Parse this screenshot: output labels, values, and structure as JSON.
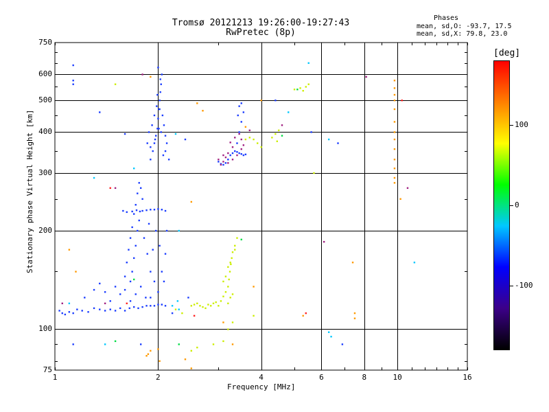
{
  "chart_data": {
    "type": "scatter",
    "title": "Tromsø 20121213 19:26:00-19:27:43",
    "subtitle": "RwPretec (8p)",
    "xlabel": "Frequency [MHz]",
    "ylabel": "Stationary phase Virtual Height [km]",
    "x_scale": "log",
    "y_scale": "log",
    "xlim": [
      1,
      16
    ],
    "ylim": [
      75,
      750
    ],
    "x_ticks": [
      1,
      2,
      4,
      6,
      8,
      10,
      16
    ],
    "y_ticks": [
      75,
      100,
      200,
      300,
      400,
      500,
      600,
      750
    ],
    "grid": true,
    "phase_stats": {
      "heading": "Phases",
      "o_line": "mean, sd,O: -93.7, 17.5",
      "x_line": "mean, sd,X:  79.8, 23.0"
    },
    "colorbar": {
      "label": "[deg]",
      "range": [
        -180,
        180
      ],
      "ticks": [
        100,
        0,
        -100
      ],
      "colormap": [
        "#000000",
        "#3c0088",
        "#0000ff",
        "#00c8ff",
        "#00ff00",
        "#ffff00",
        "#ff8000",
        "#ff0000"
      ]
    },
    "series": [
      {
        "color": "#1a3cff",
        "points": [
          [
            1.03,
            114
          ],
          [
            1.05,
            112
          ],
          [
            1.07,
            111
          ],
          [
            1.1,
            113
          ],
          [
            1.13,
            112
          ],
          [
            1.16,
            115
          ],
          [
            1.2,
            114
          ],
          [
            1.25,
            113
          ],
          [
            1.3,
            116
          ],
          [
            1.35,
            115
          ],
          [
            1.4,
            114
          ],
          [
            1.45,
            115
          ],
          [
            1.5,
            114
          ],
          [
            1.55,
            116
          ],
          [
            1.6,
            114
          ],
          [
            1.65,
            116
          ],
          [
            1.7,
            117
          ],
          [
            1.75,
            116
          ],
          [
            1.8,
            117
          ],
          [
            1.85,
            118
          ],
          [
            1.9,
            118
          ],
          [
            1.95,
            118
          ],
          [
            2.0,
            119
          ],
          [
            2.05,
            119
          ],
          [
            2.1,
            118
          ],
          [
            1.22,
            125
          ],
          [
            1.3,
            132
          ],
          [
            1.35,
            138
          ],
          [
            1.4,
            130
          ],
          [
            1.45,
            122
          ],
          [
            1.5,
            135
          ],
          [
            1.55,
            128
          ],
          [
            1.6,
            145
          ],
          [
            1.62,
            160
          ],
          [
            1.64,
            175
          ],
          [
            1.66,
            190
          ],
          [
            1.68,
            205
          ],
          [
            1.7,
            225
          ],
          [
            1.72,
            240
          ],
          [
            1.74,
            260
          ],
          [
            1.76,
            280
          ],
          [
            1.78,
            270
          ],
          [
            1.8,
            250
          ],
          [
            1.66,
            140
          ],
          [
            1.68,
            150
          ],
          [
            1.7,
            165
          ],
          [
            1.72,
            180
          ],
          [
            1.74,
            200
          ],
          [
            1.76,
            215
          ],
          [
            1.8,
            230
          ],
          [
            1.85,
            231
          ],
          [
            1.9,
            232
          ],
          [
            1.95,
            232
          ],
          [
            2.0,
            233
          ],
          [
            2.05,
            232
          ],
          [
            1.58,
            230
          ],
          [
            1.62,
            228
          ],
          [
            1.68,
            229
          ],
          [
            1.73,
            231
          ],
          [
            1.77,
            229
          ],
          [
            1.82,
            190
          ],
          [
            1.86,
            170
          ],
          [
            1.9,
            150
          ],
          [
            1.95,
            140
          ],
          [
            2.0,
            130
          ],
          [
            2.05,
            150
          ],
          [
            2.1,
            170
          ],
          [
            2.12,
            200
          ],
          [
            2.1,
            230
          ],
          [
            1.97,
            200
          ],
          [
            1.93,
            175
          ],
          [
            1.88,
            210
          ],
          [
            2.02,
            180
          ],
          [
            2.08,
            140
          ],
          [
            1.84,
            125
          ],
          [
            1.78,
            135
          ],
          [
            1.72,
            128
          ],
          [
            1.66,
            122
          ],
          [
            1.6,
            132
          ],
          [
            1.9,
            125
          ],
          [
            1.9,
            330
          ],
          [
            1.93,
            350
          ],
          [
            1.95,
            370
          ],
          [
            1.97,
            390
          ],
          [
            1.99,
            410
          ],
          [
            2.0,
            440
          ],
          [
            2.01,
            470
          ],
          [
            2.02,
            500
          ],
          [
            2.03,
            530
          ],
          [
            2.04,
            560
          ],
          [
            2.05,
            600
          ],
          [
            2.0,
            630
          ],
          [
            2.03,
            580
          ],
          [
            1.98,
            480
          ],
          [
            2.06,
            450
          ],
          [
            2.08,
            420
          ],
          [
            2.1,
            390
          ],
          [
            2.12,
            370
          ],
          [
            2.1,
            350
          ],
          [
            2.07,
            340
          ],
          [
            1.86,
            370
          ],
          [
            1.88,
            400
          ],
          [
            1.92,
            420
          ],
          [
            1.95,
            450
          ],
          [
            1.99,
            520
          ],
          [
            2.02,
            470
          ],
          [
            1.96,
            380
          ],
          [
            2.04,
            400
          ],
          [
            1.9,
            360
          ],
          [
            2.01,
            410
          ],
          [
            3.0,
            325
          ],
          [
            3.05,
            320
          ],
          [
            3.1,
            318
          ],
          [
            3.15,
            322
          ],
          [
            3.2,
            330
          ],
          [
            3.25,
            340
          ],
          [
            3.3,
            345
          ],
          [
            3.35,
            350
          ],
          [
            3.4,
            348
          ],
          [
            3.45,
            345
          ],
          [
            3.5,
            343
          ],
          [
            3.55,
            340
          ],
          [
            3.6,
            342
          ],
          [
            3.4,
            370
          ],
          [
            3.45,
            400
          ],
          [
            3.5,
            430
          ],
          [
            3.55,
            460
          ],
          [
            3.5,
            490
          ],
          [
            3.45,
            480
          ],
          [
            3.42,
            450
          ],
          [
            1.13,
            640
          ],
          [
            1.13,
            575
          ],
          [
            1.13,
            560
          ],
          [
            1.13,
            90
          ],
          [
            1.35,
            460
          ],
          [
            1.6,
            395
          ],
          [
            1.78,
            90
          ],
          [
            4.4,
            500
          ],
          [
            5.6,
            400
          ],
          [
            6.7,
            370
          ],
          [
            2.45,
            125
          ],
          [
            2.4,
            380
          ],
          [
            6.9,
            90
          ],
          [
            2.2,
            112
          ],
          [
            2.15,
            330
          ]
        ]
      },
      {
        "color": "#ccee00",
        "points": [
          [
            2.5,
            118
          ],
          [
            2.6,
            120
          ],
          [
            2.7,
            117
          ],
          [
            2.8,
            119
          ],
          [
            2.9,
            120
          ],
          [
            3.0,
            118
          ],
          [
            3.05,
            122
          ],
          [
            3.1,
            126
          ],
          [
            3.15,
            130
          ],
          [
            3.2,
            135
          ],
          [
            3.22,
            142
          ],
          [
            3.24,
            150
          ],
          [
            3.26,
            158
          ],
          [
            3.28,
            165
          ],
          [
            3.3,
            172
          ],
          [
            3.35,
            180
          ],
          [
            3.4,
            190
          ],
          [
            3.2,
            120
          ],
          [
            3.25,
            125
          ],
          [
            3.3,
            128
          ],
          [
            3.1,
            140
          ],
          [
            3.15,
            145
          ],
          [
            3.2,
            155
          ],
          [
            3.25,
            160
          ],
          [
            2.65,
            118
          ],
          [
            2.75,
            116
          ],
          [
            2.85,
            118
          ],
          [
            2.95,
            121
          ],
          [
            2.55,
            119
          ],
          [
            3.35,
            175
          ],
          [
            3.8,
            380
          ],
          [
            3.9,
            370
          ],
          [
            4.0,
            360
          ],
          [
            4.3,
            385
          ],
          [
            4.4,
            395
          ],
          [
            4.5,
            405
          ],
          [
            4.45,
            375
          ],
          [
            5.0,
            540
          ],
          [
            5.2,
            545
          ],
          [
            5.4,
            550
          ],
          [
            5.5,
            560
          ],
          [
            5.3,
            535
          ],
          [
            3.6,
            380
          ],
          [
            3.7,
            385
          ],
          [
            2.9,
            90
          ],
          [
            3.1,
            92
          ],
          [
            3.3,
            105
          ],
          [
            3.2,
            100
          ],
          [
            2.5,
            86
          ],
          [
            2.6,
            88
          ],
          [
            1.5,
            560
          ],
          [
            2.25,
            115
          ],
          [
            2.35,
            112
          ],
          [
            3.8,
            110
          ],
          [
            5.7,
            300
          ]
        ]
      },
      {
        "color": "#ff9900",
        "points": [
          [
            1.87,
            84
          ],
          [
            1.9,
            86
          ],
          [
            1.85,
            83
          ],
          [
            2.0,
            87
          ],
          [
            2.02,
            80
          ],
          [
            2.4,
            81
          ],
          [
            2.5,
            76
          ],
          [
            3.3,
            90
          ],
          [
            3.1,
            105
          ],
          [
            9.8,
            575
          ],
          [
            9.8,
            545
          ],
          [
            9.8,
            520
          ],
          [
            9.8,
            500
          ],
          [
            9.8,
            470
          ],
          [
            9.8,
            430
          ],
          [
            9.8,
            400
          ],
          [
            9.8,
            380
          ],
          [
            9.8,
            355
          ],
          [
            9.8,
            330
          ],
          [
            9.8,
            310
          ],
          [
            9.8,
            290
          ],
          [
            9.8,
            280
          ],
          [
            10.2,
            250
          ],
          [
            7.5,
            112
          ],
          [
            7.5,
            108
          ],
          [
            7.4,
            160
          ],
          [
            3.8,
            135
          ],
          [
            1.1,
            175
          ],
          [
            1.15,
            150
          ],
          [
            2.6,
            490
          ],
          [
            2.7,
            465
          ],
          [
            2.5,
            245
          ],
          [
            4.0,
            500
          ],
          [
            1.9,
            590
          ],
          [
            3.6,
            415
          ],
          [
            5.3,
            110
          ]
        ]
      },
      {
        "color": "#a02080",
        "points": [
          [
            3.0,
            330
          ],
          [
            3.1,
            325
          ],
          [
            3.2,
            322
          ],
          [
            3.3,
            330
          ],
          [
            3.1,
            340
          ],
          [
            3.2,
            345
          ],
          [
            3.4,
            340
          ],
          [
            3.3,
            360
          ],
          [
            3.25,
            372
          ],
          [
            3.35,
            385
          ],
          [
            3.45,
            395
          ],
          [
            3.5,
            380
          ],
          [
            3.55,
            365
          ],
          [
            3.5,
            355
          ],
          [
            3.15,
            335
          ],
          [
            3.05,
            318
          ],
          [
            1.8,
            600
          ],
          [
            6.1,
            185
          ],
          [
            8.1,
            590
          ],
          [
            10.7,
            270
          ],
          [
            1.05,
            120
          ],
          [
            1.4,
            120
          ],
          [
            1.5,
            270
          ],
          [
            3.7,
            405
          ],
          [
            4.6,
            420
          ]
        ]
      },
      {
        "color": "#00c8ff",
        "points": [
          [
            2.3,
            115
          ],
          [
            2.28,
            122
          ],
          [
            2.2,
            118
          ],
          [
            1.1,
            120
          ],
          [
            5.5,
            650
          ],
          [
            4.8,
            460
          ],
          [
            11.2,
            160
          ],
          [
            6.3,
            98
          ],
          [
            6.4,
            95
          ],
          [
            1.4,
            90
          ],
          [
            2.25,
            395
          ],
          [
            2.3,
            200
          ],
          [
            1.3,
            290
          ],
          [
            6.3,
            380
          ],
          [
            1.7,
            310
          ]
        ]
      },
      {
        "color": "#00dd44",
        "points": [
          [
            1.5,
            92
          ],
          [
            2.3,
            90
          ],
          [
            1.7,
            142
          ],
          [
            3.5,
            188
          ],
          [
            5.1,
            540
          ],
          [
            4.6,
            390
          ]
        ]
      },
      {
        "color": "#ff2020",
        "points": [
          [
            1.45,
            270
          ],
          [
            10.3,
            500
          ],
          [
            5.4,
            112
          ],
          [
            2.55,
            110
          ],
          [
            1.62,
            120
          ]
        ]
      }
    ]
  }
}
